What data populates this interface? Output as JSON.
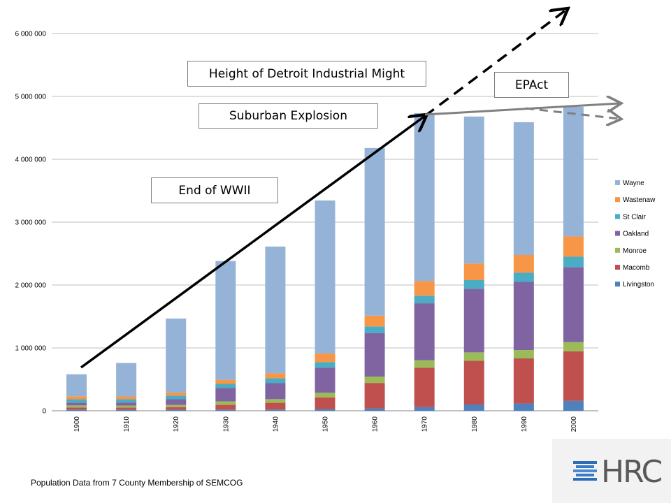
{
  "chart_data": {
    "type": "bar",
    "stacked": true,
    "categories": [
      "1900",
      "1910",
      "1920",
      "1930",
      "1940",
      "1950",
      "1960",
      "1970",
      "1980",
      "1990",
      "2000"
    ],
    "ylim": [
      0,
      6000000
    ],
    "yticks": [
      0,
      1000000,
      2000000,
      3000000,
      4000000,
      5000000,
      6000000
    ],
    "ytick_labels": [
      "0",
      "1 000 000",
      "2 000 000",
      "3 000 000",
      "4 000 000",
      "5 000 000",
      "6 000 000"
    ],
    "grid": true,
    "legend_position": "right",
    "series": [
      {
        "name": "Livingston",
        "color": "#4f81bd",
        "values": [
          20000,
          18000,
          18000,
          19000,
          20000,
          27000,
          38000,
          59000,
          100000,
          116000,
          157000
        ]
      },
      {
        "name": "Macomb",
        "color": "#c0504d",
        "values": [
          33000,
          33000,
          38000,
          77000,
          107000,
          185000,
          405000,
          625000,
          695000,
          717000,
          789000
        ]
      },
      {
        "name": "Monroe",
        "color": "#9bbb59",
        "values": [
          32000,
          32000,
          37000,
          53000,
          58000,
          76000,
          101000,
          119000,
          134000,
          133000,
          146000
        ]
      },
      {
        "name": "Oakland",
        "color": "#8064a2",
        "values": [
          44000,
          49000,
          90000,
          212000,
          254000,
          396000,
          690000,
          907000,
          1011000,
          1084000,
          1194000
        ]
      },
      {
        "name": "St Clair",
        "color": "#4bacc6",
        "values": [
          55000,
          52000,
          58000,
          67000,
          77000,
          91000,
          107000,
          120000,
          138000,
          145000,
          164000
        ]
      },
      {
        "name": "Wastenaw",
        "color": "#f79646",
        "values": [
          47000,
          44000,
          49000,
          65000,
          80000,
          135000,
          172000,
          234000,
          264000,
          283000,
          323000
        ]
      },
      {
        "name": "Wayne",
        "color": "#95b3d7",
        "values": [
          350000,
          532000,
          1177000,
          1889000,
          2016000,
          2435000,
          2666000,
          2670000,
          2338000,
          2112000,
          2061000
        ]
      }
    ],
    "annotations": {
      "height": "Height of Detroit Industrial Might",
      "suburban": "Suburban Explosion",
      "wwii": "End of WWII",
      "epact": "EPAct"
    }
  },
  "source": "Population Data from 7 County Membership of SEMCOG",
  "logo": {
    "text": "HRC"
  }
}
